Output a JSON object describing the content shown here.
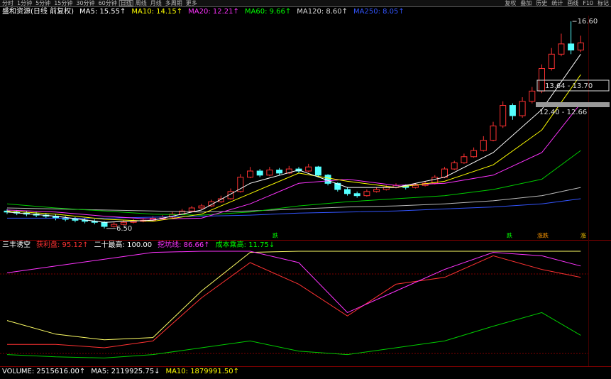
{
  "toolbar": {
    "tabs": [
      "分时",
      "1分钟",
      "5分钟",
      "15分钟",
      "30分钟",
      "60分钟",
      "日线",
      "周线",
      "月线",
      "多周期",
      "更多"
    ],
    "selected": "日线",
    "tools": [
      "复权",
      "叠加",
      "历史",
      "统计",
      "画线",
      "F10",
      "标记"
    ]
  },
  "price_panel": {
    "title": "盛和资源(日线 前复权)",
    "legend": [
      {
        "text": "MA5: 15.55↑",
        "color": "#ffffff"
      },
      {
        "text": "MA10: 14.15↑",
        "color": "#ffff00"
      },
      {
        "text": "MA20: 12.21↑",
        "color": "#ff33ff"
      },
      {
        "text": "MA60: 9.66↑",
        "color": "#00ff00"
      },
      {
        "text": "MA120: 8.60↑",
        "color": "#dddddd"
      },
      {
        "text": "MA250: 8.05↑",
        "color": "#3355ff"
      }
    ],
    "ylim": [
      6.15,
      16.88
    ],
    "up_color": "#ff3232",
    "down_color": "#54ffff",
    "candles": {
      "open": [
        7.35,
        7.3,
        7.25,
        7.2,
        7.15,
        7.1,
        7.0,
        6.95,
        6.9,
        6.85,
        6.8,
        6.6,
        6.7,
        6.8,
        6.85,
        6.9,
        7.0,
        7.05,
        7.2,
        7.35,
        7.5,
        7.6,
        7.8,
        7.95,
        8.3,
        9.0,
        9.3,
        9.1,
        9.35,
        9.2,
        9.4,
        9.3,
        9.5,
        9.1,
        8.7,
        8.4,
        8.2,
        8.1,
        8.3,
        8.4,
        8.5,
        8.6,
        8.5,
        8.6,
        8.7,
        9.0,
        9.4,
        9.7,
        10.0,
        10.3,
        10.8,
        11.5,
        12.5,
        12.0,
        12.7,
        13.2,
        14.3,
        15.0,
        15.5,
        15.2
      ],
      "high": [
        7.45,
        7.4,
        7.35,
        7.3,
        7.25,
        7.2,
        7.1,
        7.05,
        7.0,
        6.95,
        6.85,
        6.8,
        6.9,
        6.95,
        7.0,
        7.1,
        7.15,
        7.3,
        7.45,
        7.6,
        7.7,
        7.9,
        8.1,
        8.45,
        9.15,
        9.5,
        9.4,
        9.5,
        9.45,
        9.55,
        9.5,
        9.65,
        9.55,
        9.15,
        8.75,
        8.5,
        8.3,
        8.4,
        8.5,
        8.6,
        8.7,
        8.65,
        8.7,
        8.8,
        9.1,
        9.5,
        9.8,
        10.15,
        10.45,
        11.0,
        11.7,
        12.7,
        12.6,
        12.9,
        13.4,
        14.5,
        15.3,
        16.0,
        16.6,
        15.9
      ],
      "low": [
        7.2,
        7.15,
        7.1,
        7.05,
        7.0,
        6.9,
        6.85,
        6.8,
        6.75,
        6.7,
        6.5,
        6.55,
        6.65,
        6.75,
        6.8,
        6.85,
        6.95,
        7.0,
        7.15,
        7.3,
        7.45,
        7.55,
        7.75,
        7.9,
        8.25,
        8.95,
        9.0,
        9.05,
        9.1,
        9.15,
        9.2,
        9.25,
        9.0,
        8.6,
        8.3,
        8.1,
        8.0,
        8.05,
        8.25,
        8.35,
        8.45,
        8.4,
        8.45,
        8.55,
        8.65,
        8.95,
        9.35,
        9.65,
        9.95,
        10.25,
        10.75,
        11.4,
        11.8,
        11.9,
        12.6,
        13.1,
        14.2,
        14.9,
        15.0,
        15.1
      ],
      "close": [
        7.3,
        7.25,
        7.2,
        7.15,
        7.1,
        7.0,
        6.95,
        6.9,
        6.85,
        6.8,
        6.6,
        6.7,
        6.8,
        6.85,
        6.9,
        7.0,
        7.05,
        7.2,
        7.35,
        7.5,
        7.6,
        7.8,
        7.95,
        8.3,
        9.0,
        9.3,
        9.1,
        9.35,
        9.2,
        9.4,
        9.3,
        9.5,
        9.1,
        8.7,
        8.4,
        8.2,
        8.1,
        8.3,
        8.4,
        8.5,
        8.6,
        8.5,
        8.6,
        8.7,
        9.0,
        9.4,
        9.7,
        10.0,
        10.3,
        10.8,
        11.5,
        12.5,
        12.0,
        12.7,
        13.2,
        14.3,
        15.0,
        15.5,
        15.2,
        15.55
      ]
    },
    "ma_index": [
      0,
      5,
      10,
      15,
      20,
      25,
      30,
      35,
      40,
      45,
      50,
      55,
      59
    ],
    "ma_lines": [
      {
        "color": "#3355ff",
        "values": [
          7.0,
          7.0,
          7.0,
          7.05,
          7.1,
          7.15,
          7.25,
          7.3,
          7.35,
          7.45,
          7.55,
          7.7,
          7.95
        ]
      },
      {
        "color": "#bbbbbb",
        "values": [
          7.5,
          7.45,
          7.4,
          7.35,
          7.3,
          7.35,
          7.45,
          7.55,
          7.6,
          7.7,
          7.85,
          8.1,
          8.5
        ]
      },
      {
        "color": "#00cc00",
        "values": [
          7.7,
          7.5,
          7.35,
          7.2,
          7.15,
          7.3,
          7.6,
          7.8,
          7.95,
          8.1,
          8.4,
          8.9,
          10.3
        ]
      },
      {
        "color": "#ff33ff",
        "values": [
          7.4,
          7.3,
          7.1,
          6.95,
          7.0,
          7.7,
          8.7,
          8.9,
          8.6,
          8.7,
          9.1,
          10.2,
          12.6
        ]
      },
      {
        "color": "#ffff00",
        "values": [
          7.35,
          7.2,
          6.95,
          6.85,
          7.2,
          8.2,
          9.2,
          8.8,
          8.5,
          8.8,
          9.6,
          11.3,
          14.0
        ]
      },
      {
        "color": "#ffffff",
        "values": [
          7.3,
          7.1,
          6.8,
          6.9,
          7.4,
          8.7,
          9.35,
          8.5,
          8.5,
          9.0,
          10.2,
          12.3,
          15.0
        ]
      }
    ],
    "high_label": "16.60",
    "low_label": "6.50",
    "range_box": "13.64 - 13.70",
    "range_bar": "12.40 - 12.66",
    "signals": [
      {
        "text": "跌",
        "color": "#00ff00"
      },
      {
        "text": "跌",
        "color": "#00ff00"
      },
      {
        "text": "涨跌",
        "color": "#ff9900"
      },
      {
        "text": "涨",
        "color": "#ffcc00"
      }
    ]
  },
  "indicator_panel": {
    "title": "三丰诱空",
    "legend": [
      {
        "text": "获利盘: 95.12↑",
        "color": "#ff3232"
      },
      {
        "text": "二十最高: 100.00",
        "color": "#ffffff"
      },
      {
        "text": "挖坑线: 86.66↑",
        "color": "#ff33ff"
      },
      {
        "text": "成本乘高: 11.75↓",
        "color": "#00ff00"
      }
    ],
    "ylim": [
      0,
      100
    ],
    "ref_levels": [
      80,
      10
    ],
    "index": [
      0,
      5,
      10,
      15,
      20,
      25,
      30,
      35,
      40,
      45,
      50,
      55,
      59
    ],
    "series": [
      {
        "color": "#ffff66",
        "values": [
          39,
          27,
          22,
          24,
          65,
          99,
          100,
          100,
          100,
          100,
          100,
          100,
          100
        ]
      },
      {
        "color": "#00cc00",
        "values": [
          9,
          7,
          6,
          9,
          15,
          21,
          12,
          9,
          15,
          21,
          34,
          46,
          26
        ]
      },
      {
        "color": "#ff3232",
        "values": [
          18,
          18,
          15,
          21,
          59,
          90,
          71,
          43,
          71,
          77,
          96,
          84,
          77
        ]
      },
      {
        "color": "#ff33ff",
        "values": [
          81,
          87,
          93,
          99,
          100,
          100,
          90,
          46,
          65,
          84,
          99,
          96,
          87
        ]
      }
    ]
  },
  "volume_panel": {
    "legend": [
      {
        "text": "VOLUME: 2515616.00↑",
        "color": "#ffffff"
      },
      {
        "text": "MA5: 2119925.75↓",
        "color": "#ffffff"
      },
      {
        "text": "MA10: 1879991.50↑",
        "color": "#ffff00"
      }
    ]
  }
}
